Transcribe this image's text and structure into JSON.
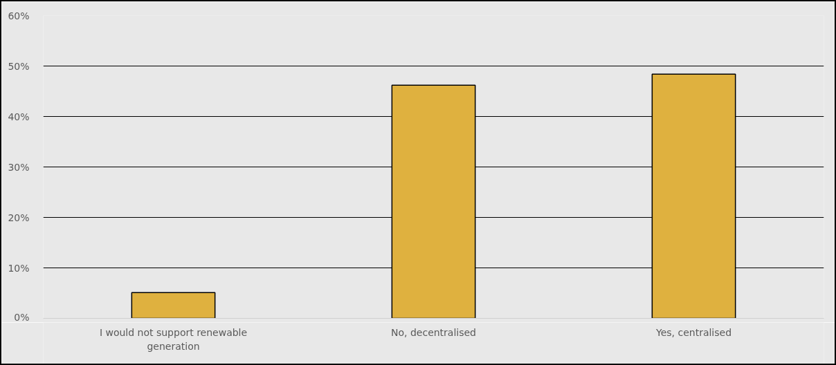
{
  "chart_data": {
    "type": "bar",
    "categories": [
      "I would not support renewable generation",
      "No, decentralised",
      "Yes, centralised"
    ],
    "values": [
      0.051,
      0.462,
      0.484
    ],
    "color": "#dfb13f",
    "ylim": [
      0,
      0.6
    ],
    "yticks": [
      {
        "value": 0,
        "label": "0%"
      },
      {
        "value": 0.1,
        "label": "10%"
      },
      {
        "value": 0.2,
        "label": "20%"
      },
      {
        "value": 0.3,
        "label": "30%"
      },
      {
        "value": 0.4,
        "label": "40%"
      },
      {
        "value": 0.5,
        "label": "50%"
      },
      {
        "value": 0.6,
        "label": "60%"
      }
    ],
    "grid": "y"
  }
}
